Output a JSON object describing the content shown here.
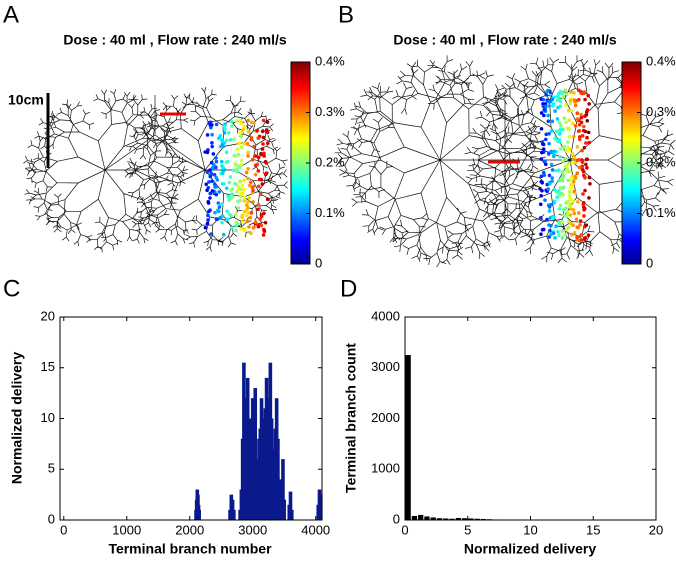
{
  "chart_data": [
    {
      "type": "tree",
      "panel": "A",
      "title": "Dose : 40 ml , Flow rate : 240 ml/s",
      "scale_label": "10cm",
      "colorbar": {
        "lim": [
          0,
          0.4
        ],
        "ticks": [
          0,
          {
            "value": 0.1,
            "label": "0.1%"
          },
          {
            "value": 0.2,
            "label": "0.2%"
          },
          {
            "value": 0.3,
            "label": "0.3%"
          },
          {
            "value": 0.4,
            "label": "0.4%"
          }
        ]
      }
    },
    {
      "type": "tree",
      "panel": "B",
      "title": "Dose : 40 ml , Flow rate : 240 ml/s",
      "colorbar": {
        "lim": [
          0,
          0.4
        ],
        "ticks": [
          0,
          {
            "value": 0.1,
            "label": "0.1%"
          },
          {
            "value": 0.2,
            "label": "0.2%"
          },
          {
            "value": 0.3,
            "label": "0.3%"
          },
          {
            "value": 0.4,
            "label": "0.4%"
          }
        ]
      }
    },
    {
      "type": "bar",
      "panel": "C",
      "xlabel": "Terminal branch number",
      "ylabel": "Normalized delivery",
      "color": "#0a1a8c",
      "x": [
        2100,
        2110,
        2120,
        2130,
        2140,
        2150,
        2640,
        2660,
        2680,
        2700,
        2800,
        2820,
        2840,
        2860,
        2880,
        2900,
        2920,
        2940,
        2960,
        2980,
        3000,
        3020,
        3040,
        3060,
        3080,
        3100,
        3120,
        3140,
        3160,
        3180,
        3200,
        3220,
        3240,
        3260,
        3280,
        3300,
        3320,
        3340,
        3360,
        3380,
        3400,
        3420,
        3440,
        3460,
        3480,
        3500,
        3580,
        3600,
        3620,
        4040,
        4060,
        4080
      ],
      "values": [
        1,
        2,
        3,
        2.5,
        1.5,
        1,
        1,
        2.5,
        2,
        1,
        1,
        3,
        8,
        15.5,
        12,
        9,
        14,
        7,
        10,
        5,
        12,
        9,
        13,
        6,
        4,
        8,
        9,
        12,
        10,
        7,
        11,
        14,
        8,
        12,
        15.5,
        10,
        7,
        5,
        9,
        12,
        8,
        3,
        4,
        2,
        6,
        2,
        1.5,
        2.8,
        1,
        1.5,
        3,
        2.5
      ],
      "xlim": [
        -60,
        4100
      ],
      "ylim": [
        0,
        20
      ],
      "xticks": [
        0,
        1000,
        2000,
        3000,
        4000
      ],
      "yticks": [
        0,
        5,
        10,
        15,
        20
      ]
    },
    {
      "type": "histogram",
      "panel": "D",
      "xlabel": "Normalized delivery",
      "ylabel": "Terminal branch count",
      "color": "#000000",
      "bins": [
        0,
        0.5,
        1,
        1.5,
        2,
        2.5,
        3,
        3.5,
        4,
        4.5,
        5,
        5.5,
        6,
        6.5,
        7,
        7.5,
        8,
        8.5,
        9,
        9.5,
        10,
        10.5,
        11
      ],
      "values": [
        3250,
        80,
        100,
        70,
        50,
        35,
        30,
        25,
        40,
        35,
        30,
        25,
        20,
        15,
        10,
        10,
        8,
        6,
        5,
        3,
        2,
        2
      ],
      "xlim": [
        0,
        20
      ],
      "ylim": [
        0,
        4000
      ],
      "xticks": [
        0,
        5,
        10,
        15,
        20
      ],
      "yticks": [
        0,
        1000,
        2000,
        3000,
        4000
      ]
    }
  ]
}
